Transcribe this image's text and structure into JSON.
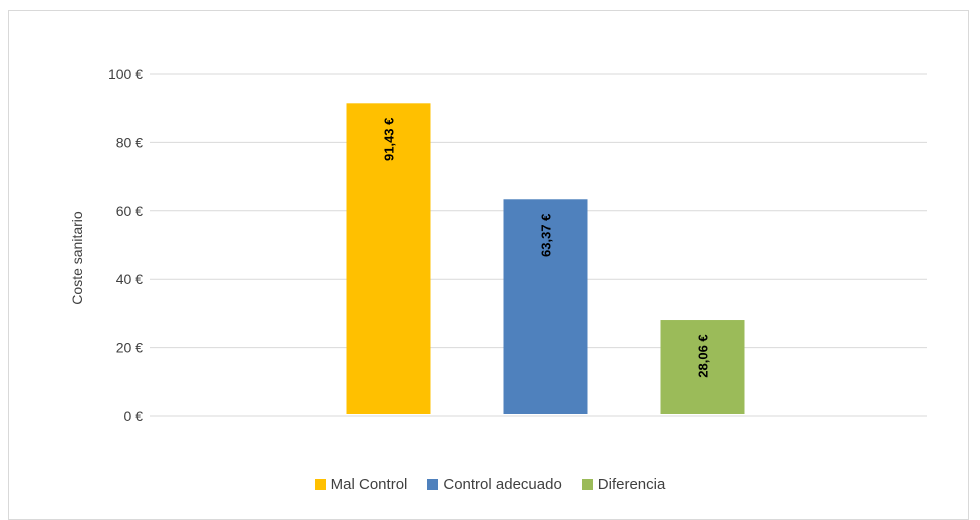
{
  "chart_data": {
    "type": "bar",
    "categories": [
      "Mal Control",
      "Control adecuado",
      "Diferencia"
    ],
    "values": [
      91.43,
      63.37,
      28.06
    ],
    "data_labels": [
      "91,43 €",
      "63,37 €",
      "28,06 €"
    ],
    "colors": [
      "#FFC000",
      "#4F81BD",
      "#9BBB59"
    ],
    "title": "",
    "xlabel": "",
    "ylabel": "Coste sanitario",
    "ylim": [
      0,
      100
    ],
    "yticks": [
      0,
      20,
      40,
      60,
      80,
      100
    ],
    "ytick_labels": [
      "0 €",
      "20 €",
      "40 €",
      "60 €",
      "80 €",
      "100 €"
    ],
    "grid": true,
    "legend_position": "bottom"
  }
}
